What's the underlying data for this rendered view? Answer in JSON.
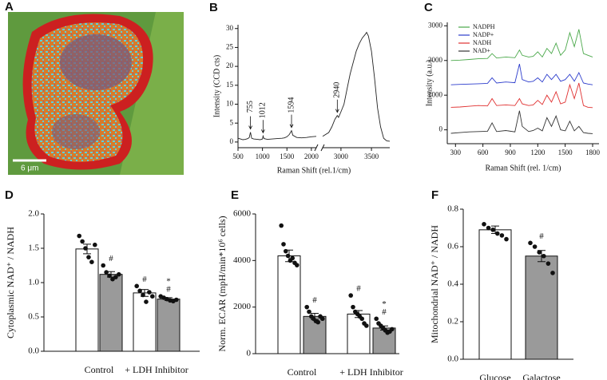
{
  "image_panel": {
    "letter": "A",
    "scale_label": "6 μm"
  },
  "chart_data": [
    {
      "type": "line",
      "letter": "B",
      "y_label": "Intensity (CCD cts)",
      "x_label": "Raman Shift (rel.1/cm)",
      "x": [
        500,
        550,
        600,
        650,
        700,
        730,
        755,
        780,
        820,
        900,
        950,
        1000,
        1012,
        1030,
        1100,
        1200,
        1300,
        1400,
        1450,
        1500,
        1550,
        1594,
        1620,
        1700,
        1800,
        1900,
        2000,
        2100,
        2300,
        2700,
        2800,
        2850,
        2900,
        2940,
        2960,
        3000,
        3050,
        3100,
        3150,
        3200,
        3250,
        3300,
        3350,
        3400,
        3420,
        3450,
        3500,
        3550,
        3600,
        3650,
        3700,
        3750,
        3800
      ],
      "series": [
        {
          "color": "#222222",
          "values": [
            1,
            0.8,
            0.6,
            0.7,
            0.9,
            1.2,
            2.6,
            1.0,
            0.8,
            0.7,
            0.6,
            0.8,
            1.6,
            0.9,
            0.7,
            0.8,
            0.9,
            1.0,
            1.1,
            1.4,
            2.0,
            3.0,
            1.8,
            1.2,
            1.1,
            1.2,
            1.4,
            1.5,
            null,
            1.5,
            2.5,
            4,
            6,
            7,
            6.5,
            8,
            10,
            14,
            18,
            21,
            24,
            26,
            27.5,
            28.5,
            29,
            28,
            24,
            17,
            9,
            4,
            1,
            0.3,
            0.2
          ]
        }
      ],
      "xlim": [
        500,
        3800
      ],
      "x_break": [
        2100,
        2700
      ],
      "ylim": [
        -1.5,
        31
      ],
      "xticks": [
        500,
        1000,
        1500,
        2000,
        3000,
        3500
      ],
      "yticks": [
        0,
        5,
        10,
        15,
        20,
        25,
        30
      ],
      "annotations": [
        {
          "text": "755",
          "x": 755
        },
        {
          "text": "1012",
          "x": 1012
        },
        {
          "text": "1594",
          "x": 1594
        },
        {
          "text": "2940",
          "x": 2940
        }
      ]
    },
    {
      "type": "line",
      "letter": "C",
      "y_label": "Intensity (a.u.)",
      "x_label": "Raman Shift (rel. 1/cm)",
      "x": [
        250,
        350,
        450,
        550,
        650,
        700,
        750,
        850,
        950,
        1000,
        1030,
        1100,
        1150,
        1200,
        1250,
        1300,
        1350,
        1400,
        1450,
        1500,
        1550,
        1600,
        1650,
        1700,
        1750,
        1800
      ],
      "series": [
        {
          "name": "NADPH",
          "color": "#4aa84a",
          "values": [
            2000,
            2010,
            2030,
            2050,
            2060,
            2200,
            2070,
            2100,
            2080,
            2300,
            2150,
            2100,
            2120,
            2250,
            2100,
            2350,
            2200,
            2500,
            2150,
            2300,
            2800,
            2400,
            2900,
            2200,
            2150,
            2100
          ]
        },
        {
          "name": "NADP+",
          "color": "#2c3ccc",
          "values": [
            1300,
            1310,
            1320,
            1330,
            1340,
            1500,
            1350,
            1380,
            1360,
            1900,
            1450,
            1380,
            1400,
            1500,
            1380,
            1600,
            1450,
            1600,
            1400,
            1450,
            1600,
            1400,
            1650,
            1350,
            1320,
            1300
          ]
        },
        {
          "name": "NADH",
          "color": "#e03030",
          "values": [
            650,
            660,
            680,
            700,
            690,
            900,
            700,
            720,
            700,
            900,
            750,
            700,
            720,
            850,
            730,
            1000,
            800,
            1100,
            750,
            800,
            1300,
            900,
            1350,
            700,
            650,
            640
          ]
        },
        {
          "name": "NAD+",
          "color": "#333333",
          "values": [
            -100,
            -80,
            -60,
            -50,
            -40,
            200,
            -50,
            -20,
            -60,
            550,
            100,
            -50,
            -20,
            50,
            -30,
            350,
            100,
            400,
            0,
            -30,
            250,
            -30,
            100,
            -80,
            -100,
            -110
          ]
        }
      ],
      "xlim": [
        210,
        1870
      ],
      "ylim": [
        -400,
        3100
      ],
      "xticks": [
        300,
        600,
        900,
        1200,
        1500,
        1800
      ],
      "yticks": [
        0,
        1000,
        2000,
        3000
      ],
      "legend": "upper-left"
    },
    {
      "type": "bar",
      "letter": "D",
      "y_label": "Cytoplasmic NAD⁺ / NADH",
      "categories": [
        "Control",
        "+ LDH Inhibitor"
      ],
      "series": [
        {
          "color": "#ffffff",
          "values": [
            1.49,
            0.85
          ],
          "errors": [
            0.07,
            0.05
          ],
          "points": [
            [
              1.68,
              1.6,
              1.5,
              1.37,
              1.3,
              1.55
            ],
            [
              0.95,
              0.88,
              0.82,
              0.72,
              0.86,
              0.8
            ]
          ],
          "marks": [
            [],
            [
              "#"
            ]
          ]
        },
        {
          "color": "#9a9a9a",
          "values": [
            1.12,
            0.76
          ],
          "errors": [
            0.04,
            0.02
          ],
          "points": [
            [
              1.25,
              1.15,
              1.1,
              1.05,
              1.08,
              1.12
            ],
            [
              0.8,
              0.78,
              0.76,
              0.74,
              0.73,
              0.75
            ]
          ],
          "marks": [
            [
              "#"
            ],
            [
              "*",
              "#"
            ]
          ]
        }
      ],
      "ylim": [
        0,
        2
      ],
      "yticks": [
        {
          "value": 0,
          "label": "0.0"
        },
        0.5,
        {
          "value": 1,
          "label": "1.0"
        },
        1.5,
        {
          "value": 2,
          "label": "2.0"
        }
      ]
    },
    {
      "type": "bar",
      "letter": "E",
      "y_label": "Norm. ECAR (mpH/min*10⁶ cells)",
      "categories": [
        "Control",
        "+ LDH Inhibitor"
      ],
      "series": [
        {
          "color": "#ffffff",
          "values": [
            4200,
            1700
          ],
          "errors": [
            250,
            150
          ],
          "points": [
            [
              5500,
              4700,
              4400,
              4200,
              4000,
              4100,
              3900,
              3800
            ],
            [
              2500,
              2000,
              1800,
              1700,
              1600,
              1500,
              1300,
              1200
            ]
          ],
          "marks": [
            [],
            [
              "#"
            ]
          ]
        },
        {
          "color": "#9a9a9a",
          "values": [
            1600,
            1100
          ],
          "errors": [
            130,
            90
          ],
          "points": [
            [
              2000,
              1800,
              1600,
              1500,
              1400,
              1350,
              1600,
              1500
            ],
            [
              1500,
              1300,
              1200,
              1100,
              1000,
              900,
              950,
              1050
            ]
          ],
          "marks": [
            [
              "#"
            ],
            [
              "*",
              "#"
            ]
          ]
        }
      ],
      "ylim": [
        0,
        6000
      ],
      "yticks": [
        0,
        2000,
        4000,
        6000
      ]
    },
    {
      "type": "bar",
      "letter": "F",
      "y_label": "Mitochondrial NAD⁺ / NADH",
      "categories": [
        "Glucose",
        "Galactose"
      ],
      "series": [
        {
          "colors": [
            "#ffffff",
            "#9a9a9a"
          ],
          "values": [
            0.69,
            0.55
          ],
          "errors": [
            0.02,
            0.03
          ],
          "points": [
            [
              0.72,
              0.7,
              0.69,
              0.67,
              0.66,
              0.64
            ],
            [
              0.62,
              0.6,
              0.57,
              0.55,
              0.51,
              0.46
            ]
          ],
          "marks": [
            [],
            [
              "#"
            ]
          ]
        }
      ],
      "ylim": [
        0,
        0.8
      ],
      "yticks": [
        {
          "value": 0,
          "label": "0.0"
        },
        0.2,
        0.4,
        0.6,
        0.8
      ]
    }
  ]
}
